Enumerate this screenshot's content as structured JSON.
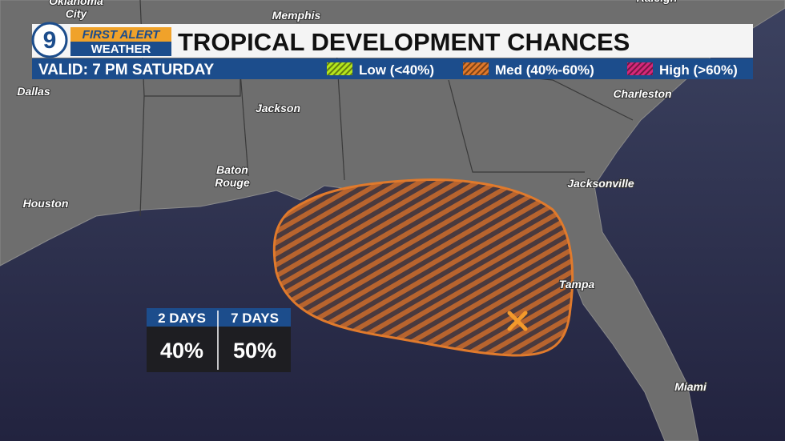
{
  "header": {
    "logo_number": "9",
    "brand_top": "FIRST ALERT",
    "brand_bottom": "WEATHER",
    "title": "TROPICAL DEVELOPMENT CHANCES"
  },
  "subheader": {
    "valid": "VALID: 7 PM SATURDAY",
    "legend": [
      {
        "label": "Low (<40%)",
        "color": "#b5e61d"
      },
      {
        "label": "Med (40%-60%)",
        "color": "#e0782a"
      },
      {
        "label": "High (>60%)",
        "color": "#d6287a"
      }
    ]
  },
  "cities": [
    {
      "lines": [
        "Oklahoma",
        "City"
      ]
    },
    {
      "lines": [
        "Memphis"
      ]
    },
    {
      "lines": [
        "Raleigh"
      ]
    },
    {
      "lines": [
        "Dallas"
      ]
    },
    {
      "lines": [
        "Jackson"
      ]
    },
    {
      "lines": [
        "Charleston"
      ]
    },
    {
      "lines": [
        "Baton",
        "Rouge"
      ]
    },
    {
      "lines": [
        "Houston"
      ]
    },
    {
      "lines": [
        "Jacksonville"
      ]
    },
    {
      "lines": [
        "Tampa"
      ]
    },
    {
      "lines": [
        "Miami"
      ]
    }
  ],
  "outlook_table": {
    "headers": [
      "2 DAYS",
      "7 DAYS"
    ],
    "values": [
      "40%",
      "50%"
    ]
  }
}
